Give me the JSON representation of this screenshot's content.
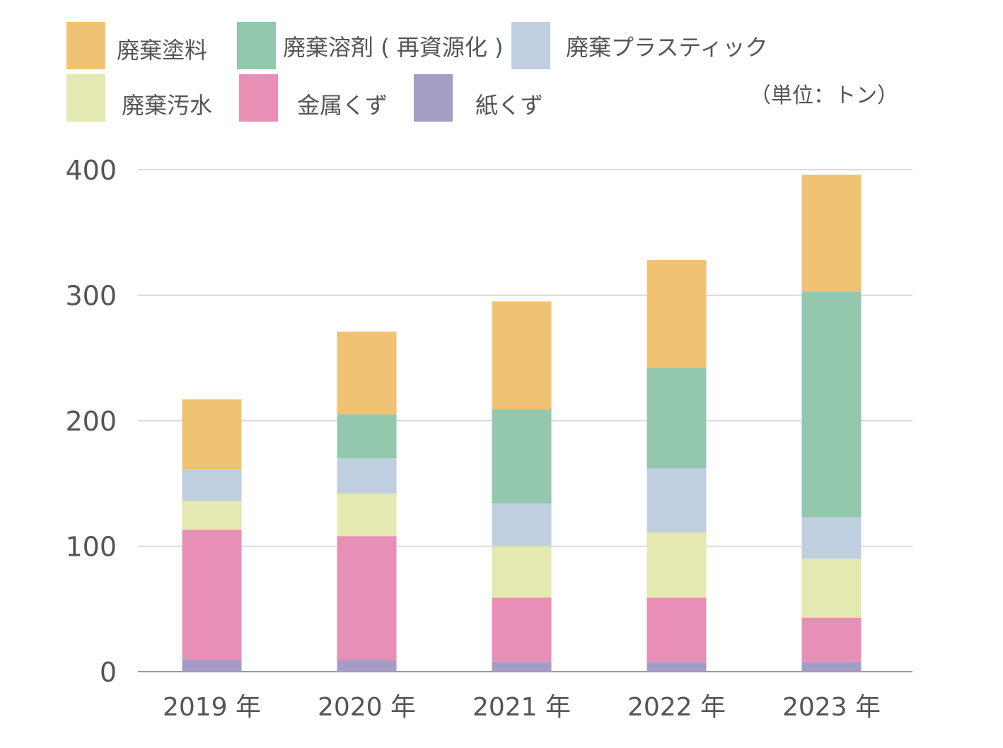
{
  "chart_data": {
    "type": "bar",
    "stacked": true,
    "categories": [
      "2019 年",
      "2020 年",
      "2021 年",
      "2022 年",
      "2023 年"
    ],
    "series": [
      {
        "name": "紙くず",
        "color": "#a59dc6",
        "values": [
          10,
          9,
          8,
          8,
          8
        ]
      },
      {
        "name": "金属くず",
        "color": "#e88fb5",
        "values": [
          103,
          99,
          51,
          51,
          35
        ]
      },
      {
        "name": "廃棄汚水",
        "color": "#e3e9b0",
        "values": [
          23,
          34,
          41,
          52,
          47
        ]
      },
      {
        "name": "廃棄プラスティック",
        "color": "#bfcfe0",
        "values": [
          25,
          28,
          34,
          51,
          33
        ]
      },
      {
        "name": "廃棄溶剤 ( 再資源化 )",
        "color": "#93c7ae",
        "values": [
          0,
          35,
          75,
          80,
          180
        ]
      },
      {
        "name": "廃棄塗料",
        "color": "#f0c374",
        "values": [
          56,
          66,
          86,
          86,
          93
        ]
      }
    ],
    "yticks": [
      0,
      100,
      200,
      300,
      400
    ],
    "ylim": [
      0,
      400
    ],
    "grid": true,
    "unit": "（単位：トン）",
    "legend_position": "top-left"
  }
}
